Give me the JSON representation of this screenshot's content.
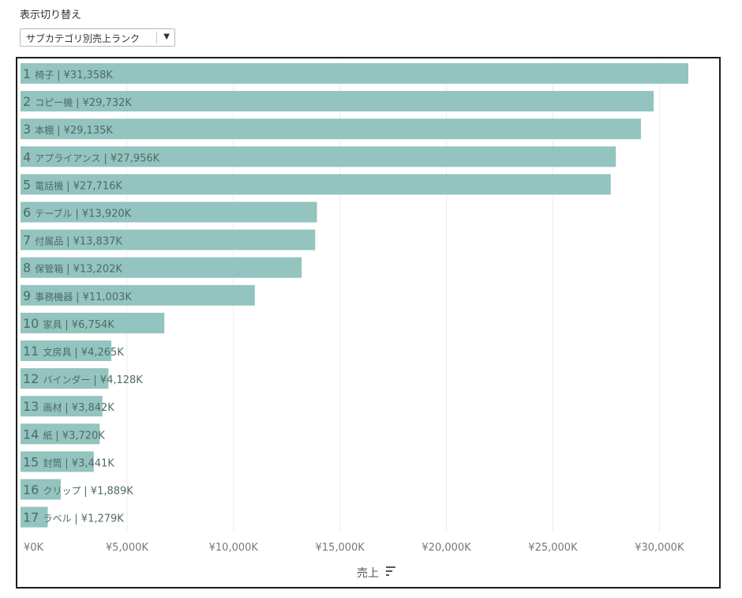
{
  "controls": {
    "switch_label": "表示切り替え",
    "selected_view": "サブカテゴリ別売上ランク",
    "dropdown_icon": "caret-down-icon"
  },
  "colors": {
    "bar": "#93c4bf",
    "label_text": "#4f6a66",
    "grid": "#ececec",
    "axis_text": "#777777"
  },
  "chart_data": {
    "type": "bar",
    "orientation": "horizontal",
    "xlabel": "売上",
    "xlim": [
      0,
      32500
    ],
    "xticks": [
      0,
      5000,
      10000,
      15000,
      20000,
      25000,
      30000
    ],
    "xtick_labels": [
      "¥0K",
      "¥5,000K",
      "¥10,000K",
      "¥15,000K",
      "¥20,000K",
      "¥25,000K",
      "¥30,000K"
    ],
    "grid": "vertical",
    "sort_icon": "sort-descending-icon",
    "bars": [
      {
        "rank": "1",
        "name": "椅子",
        "value": 31358,
        "label": "| ¥31,358K"
      },
      {
        "rank": "2",
        "name": "コピー機",
        "value": 29732,
        "label": "| ¥29,732K"
      },
      {
        "rank": "3",
        "name": "本棚",
        "value": 29135,
        "label": "| ¥29,135K"
      },
      {
        "rank": "4",
        "name": "アプライアンス",
        "value": 27956,
        "label": "| ¥27,956K"
      },
      {
        "rank": "5",
        "name": "電話機",
        "value": 27716,
        "label": "| ¥27,716K"
      },
      {
        "rank": "6",
        "name": "テーブル",
        "value": 13920,
        "label": "| ¥13,920K"
      },
      {
        "rank": "7",
        "name": "付属品",
        "value": 13837,
        "label": "| ¥13,837K"
      },
      {
        "rank": "8",
        "name": "保管箱",
        "value": 13202,
        "label": "| ¥13,202K"
      },
      {
        "rank": "9",
        "name": "事務機器",
        "value": 11003,
        "label": "| ¥11,003K"
      },
      {
        "rank": "10",
        "name": "家具",
        "value": 6754,
        "label": "| ¥6,754K"
      },
      {
        "rank": "11",
        "name": "文房具",
        "value": 4265,
        "label": "| ¥4,265K"
      },
      {
        "rank": "12",
        "name": "バインダー",
        "value": 4128,
        "label": "| ¥4,128K"
      },
      {
        "rank": "13",
        "name": "画材",
        "value": 3842,
        "label": "| ¥3,842K"
      },
      {
        "rank": "14",
        "name": "紙",
        "value": 3720,
        "label": "| ¥3,720K"
      },
      {
        "rank": "15",
        "name": "封筒",
        "value": 3441,
        "label": "| ¥3,441K"
      },
      {
        "rank": "16",
        "name": "クリップ",
        "value": 1889,
        "label": "| ¥1,889K"
      },
      {
        "rank": "17",
        "name": "ラベル",
        "value": 1279,
        "label": "| ¥1,279K"
      }
    ]
  }
}
